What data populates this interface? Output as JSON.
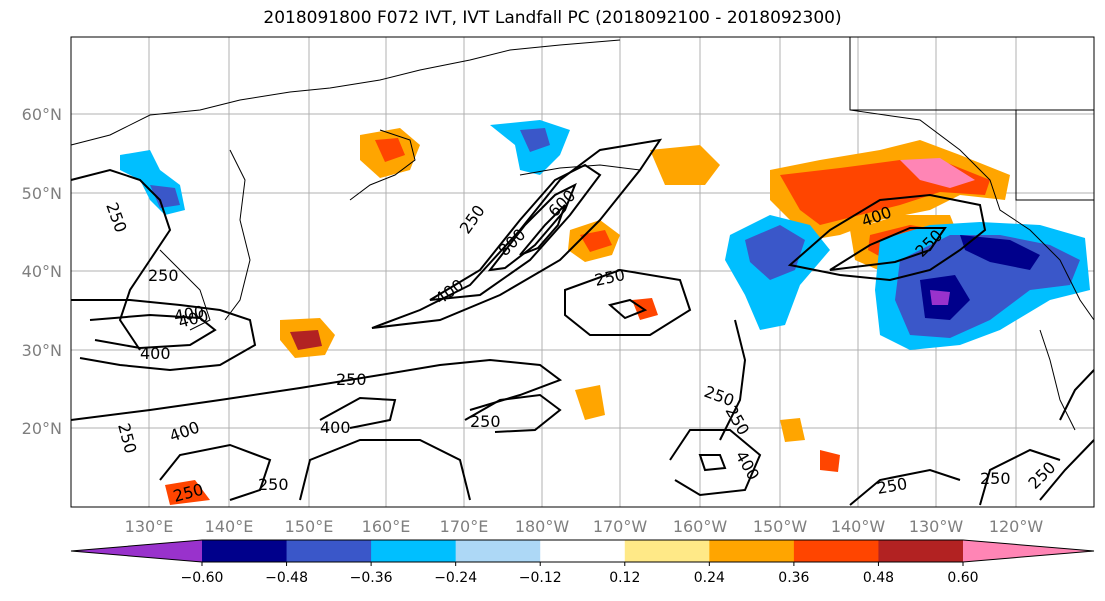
{
  "title": "2018091800 F072 IVT, IVT Landfall PC (2018092100 - 2018092300)",
  "longitude_ticks": [
    "130°E",
    "140°E",
    "150°E",
    "160°E",
    "170°E",
    "180°W",
    "170°W",
    "160°W",
    "150°W",
    "140°W",
    "130°W",
    "120°W"
  ],
  "latitude_ticks": [
    "20°N",
    "30°N",
    "40°N",
    "50°N",
    "60°N"
  ],
  "colorbar": {
    "ticks": [
      "−0.60",
      "−0.48",
      "−0.36",
      "−0.24",
      "−0.12",
      "0.12",
      "0.24",
      "0.36",
      "0.48",
      "0.60"
    ],
    "colors": [
      "#9932CC",
      "#00008B",
      "#3A57C9",
      "#00BFFF",
      "#ADD8F6",
      "#FFFFFF",
      "#FFE987",
      "#FFA500",
      "#FF4500",
      "#B22222",
      "#FF85B5"
    ]
  },
  "ivt_contour_labels": [
    "250",
    "250",
    "600",
    "800",
    "400",
    "250",
    "400",
    "250",
    "250",
    "400",
    "250",
    "400",
    "400",
    "250",
    "250",
    "250",
    "250",
    "250",
    "250",
    "250",
    "400",
    "250",
    "400",
    "400",
    "250"
  ]
}
